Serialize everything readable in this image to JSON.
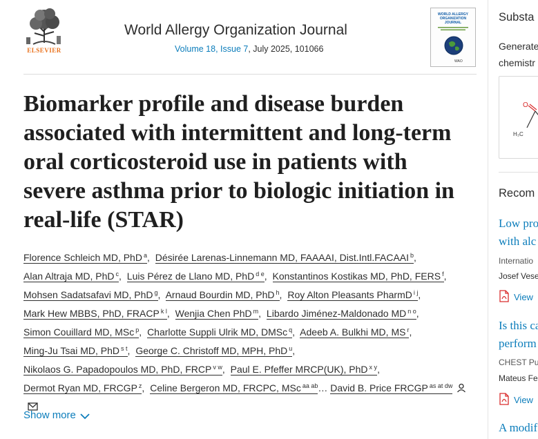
{
  "header": {
    "publisher": "ELSEVIER",
    "journal_title": "World Allergy Organization Journal",
    "volume_link": "Volume 18, Issue 7",
    "date_article": ", July 2025, 101066",
    "cover": {
      "title": "WORLD ALLERGY ORGANIZATION JOURNAL",
      "badge": "WAO"
    }
  },
  "article": {
    "title": "Biomarker profile and disease burden associated with intermittent and long-term oral corticosteroid use in patients with severe asthma prior to biologic initiation in real-life (STAR)",
    "authors": [
      {
        "name": "Florence Schleich MD, PhD",
        "sup": "a"
      },
      {
        "name": "Désirée Larenas-Linnemann MD, FAAAAI, Dist.Intl.FACAAI",
        "sup": "b"
      },
      {
        "name": "Alan Altraja MD, PhD",
        "sup": "c"
      },
      {
        "name": "Luis Pérez de Llano MD, PhD",
        "sup": "d e"
      },
      {
        "name": "Konstantinos Kostikas MD, PhD, FERS",
        "sup": "f"
      },
      {
        "name": "Mohsen Sadatsafavi MD, PhD",
        "sup": "g"
      },
      {
        "name": "Arnaud Bourdin MD, PhD",
        "sup": "h"
      },
      {
        "name": "Roy Alton Pleasants PharmD",
        "sup": "i j"
      },
      {
        "name": "Mark Hew MBBS, PhD, FRACP",
        "sup": "k l"
      },
      {
        "name": "Wenjia Chen PhD",
        "sup": "m"
      },
      {
        "name": "Libardo Jiménez-Maldonado MD",
        "sup": "n o"
      },
      {
        "name": "Simon Couillard MD, MSc",
        "sup": "p"
      },
      {
        "name": "Charlotte Suppli Ulrik MD, DMSc",
        "sup": "q"
      },
      {
        "name": "Adeeb A. Bulkhi MD, MS",
        "sup": "r"
      },
      {
        "name": "Ming-Ju Tsai MD, PhD",
        "sup": "s t"
      },
      {
        "name": "George C. Christoff MD, MPH, PhD",
        "sup": "u"
      },
      {
        "name": "Nikolaos G. Papadopoulos MD, PhD, FRCP",
        "sup": "v w"
      },
      {
        "name": "Paul E. Pfeffer MRCP(UK), PhD",
        "sup": "x y"
      },
      {
        "name": "Dermot Ryan MD, FRCGP",
        "sup": "z"
      },
      {
        "name": "Celine Bergeron MD, FRCPC, MSc",
        "sup": "aa ab"
      },
      {
        "name": "David B. Price FRCGP",
        "sup": "as at dw"
      }
    ],
    "ellipsis": "…",
    "show_more": "Show more"
  },
  "sidebar": {
    "heading1": "Substa",
    "text1_line1": "Generate",
    "text1_line2": "chemistr",
    "heading2": "Recom",
    "items": [
      {
        "title_line1": "Low pro",
        "title_line2": "with alc",
        "source": "Internatio",
        "authors": "Josef Vese",
        "view": "View"
      },
      {
        "title_line1": "Is this ca",
        "title_line2": "perform",
        "source": "CHEST Pul",
        "authors": "Mateus Fe",
        "view": "View"
      }
    ],
    "item3_title": "A modif"
  },
  "colors": {
    "link": "#0c7dbb",
    "publisher_orange": "#e9711c",
    "pdf_red": "#d92c2c"
  }
}
